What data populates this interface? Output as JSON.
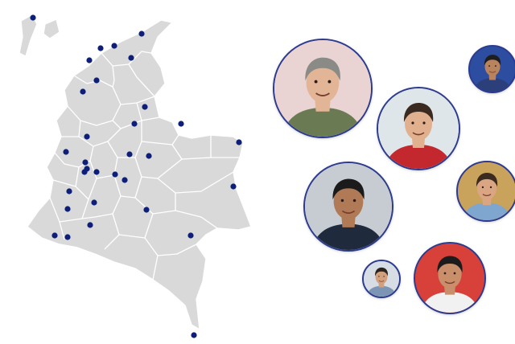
{
  "map": {
    "region": "Colombia",
    "fill_color": "#d9d9d9",
    "border_color": "#ffffff",
    "marker_color": "#0d1f78",
    "marker_icon": "circle-dot-icon"
  },
  "portraits": [
    {
      "name": "portrait-woman-glasses",
      "skin": "#e2b597",
      "hair": "#8a8a86",
      "shirt": "#6a7a52",
      "bg": "#e9d3d3"
    },
    {
      "name": "portrait-man-beard-red-jacket",
      "skin": "#e0b08f",
      "hair": "#3b2a20",
      "shirt": "#c4282f",
      "bg": "#dfe6ea"
    },
    {
      "name": "portrait-man-microphone-top",
      "skin": "#b9835e",
      "hair": "#1e1e1e",
      "shirt": "#2b3f7a",
      "bg": "#2d4da0"
    },
    {
      "name": "portrait-man-suit",
      "skin": "#b07a56",
      "hair": "#1b1b1b",
      "shirt": "#1f2a3d",
      "bg": "#c7ccd3"
    },
    {
      "name": "portrait-man-blue-shirt-mic",
      "skin": "#d9a582",
      "hair": "#3a2a1f",
      "shirt": "#7ea6cf",
      "bg": "#c9a25c"
    },
    {
      "name": "portrait-man-smiling-small",
      "skin": "#d3a07d",
      "hair": "#2a2420",
      "shirt": "#7d95b5",
      "bg": "#d7dde4"
    },
    {
      "name": "portrait-man-white-shirt-mic",
      "skin": "#c98e6a",
      "hair": "#1c1c1c",
      "shirt": "#f1f1f1",
      "bg": "#d8413a"
    }
  ]
}
